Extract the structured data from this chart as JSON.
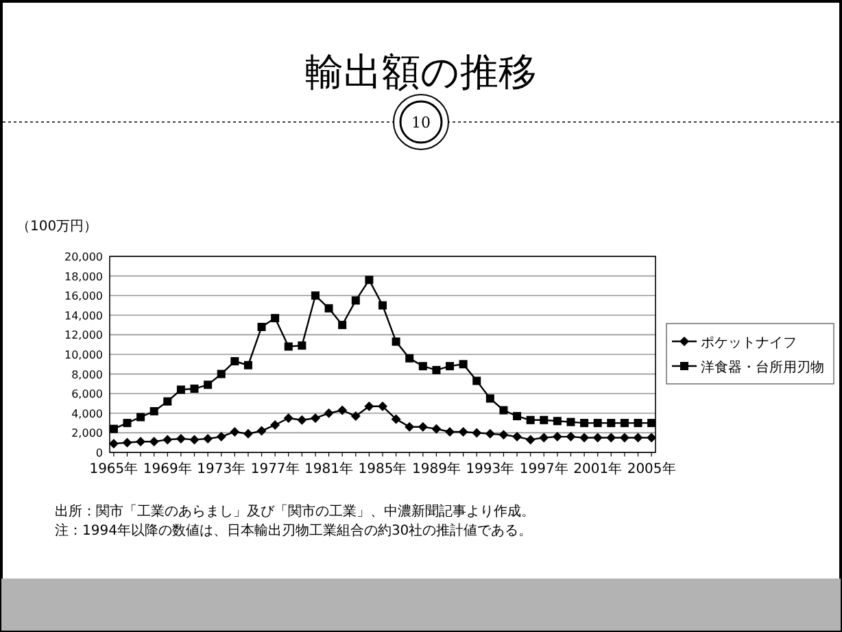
{
  "chart_data": {
    "type": "line",
    "title": "輸出額の推移",
    "ylabel": "（100万円）",
    "categories": [
      "1965年",
      null,
      null,
      null,
      "1969年",
      null,
      null,
      null,
      "1973年",
      null,
      null,
      null,
      "1977年",
      null,
      null,
      null,
      "1981年",
      null,
      null,
      null,
      "1985年",
      null,
      null,
      null,
      "1989年",
      null,
      null,
      null,
      "1993年",
      null,
      null,
      null,
      "1997年",
      null,
      null,
      null,
      "2001年",
      null,
      null,
      null,
      "2005年"
    ],
    "series": [
      {
        "name": "ポケットナイフ",
        "color": "#000000",
        "marker": "diamond",
        "values": [
          900,
          1000,
          1100,
          1100,
          1300,
          1400,
          1300,
          1400,
          1600,
          2100,
          1900,
          2200,
          2800,
          3500,
          3300,
          3500,
          4000,
          4300,
          3700,
          4700,
          4700,
          3400,
          2600,
          2600,
          2400,
          2100,
          2100,
          2000,
          1900,
          1800,
          1600,
          1300,
          1500,
          1600,
          1600,
          1500,
          1500,
          1500,
          1500,
          1500,
          1500
        ]
      },
      {
        "name": "洋食器・台所用刃物",
        "color": "#000000",
        "marker": "square",
        "values": [
          2400,
          3000,
          3600,
          4200,
          5200,
          6400,
          6500,
          6900,
          8000,
          9300,
          8900,
          12800,
          13700,
          10800,
          10900,
          16000,
          14700,
          13000,
          15500,
          17600,
          15000,
          11300,
          9600,
          8800,
          8400,
          8800,
          9000,
          7300,
          5500,
          4300,
          3700,
          3300,
          3300,
          3200,
          3100,
          3000,
          3000,
          3000,
          3000,
          3000,
          3000
        ]
      }
    ],
    "ylim": [
      0,
      20000
    ],
    "yticks": [
      {
        "value": 0,
        "label": "0"
      },
      {
        "value": 2000,
        "label": "2,000"
      },
      {
        "value": 4000,
        "label": "4,000"
      },
      {
        "value": 6000,
        "label": "6,000"
      },
      {
        "value": 8000,
        "label": "8,000"
      },
      {
        "value": 10000,
        "label": "10,000"
      },
      {
        "value": 12000,
        "label": "12,000"
      },
      {
        "value": 14000,
        "label": "14,000"
      },
      {
        "value": 16000,
        "label": "16,000"
      },
      {
        "value": 18000,
        "label": "18,000"
      },
      {
        "value": 20000,
        "label": "20,000"
      }
    ],
    "grid": "y",
    "legend": "right",
    "annotations": [
      "10",
      "出所：関市「工業のあらまし」及び「関市の工業」、中濃新聞記事より作成。",
      "注：1994年以降の数値は、日本輸出刃物工業組合の約30社の推計値である。"
    ]
  }
}
